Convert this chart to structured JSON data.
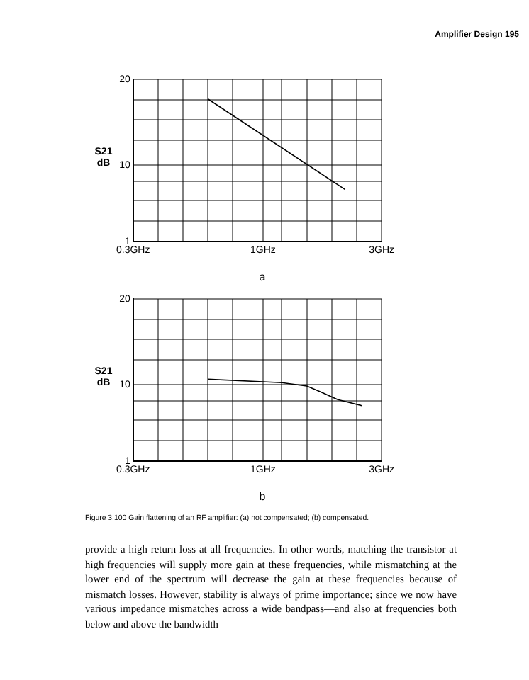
{
  "chart_data": [
    {
      "type": "line",
      "ylabel": "S21 dB",
      "log": "x",
      "grid": true,
      "legend": false,
      "marker": "none",
      "line_style": "solid",
      "xlim": [
        0.3,
        3
      ],
      "xticks": [
        {
          "value": 0.3,
          "label": "0.3GHz"
        },
        {
          "value": 0.378,
          "label": null
        },
        {
          "value": 0.475,
          "label": null
        },
        {
          "value": 0.599,
          "label": null
        },
        {
          "value": 0.754,
          "label": null
        },
        {
          "value": 1,
          "label": "1GHz"
        },
        {
          "value": 1.19,
          "label": null
        },
        {
          "value": 1.5,
          "label": null
        },
        {
          "value": 1.89,
          "label": null
        },
        {
          "value": 2.38,
          "label": null
        },
        {
          "value": 3,
          "label": "3GHz"
        }
      ],
      "ylim": [
        1,
        20
      ],
      "yticks": [
        1,
        {
          "value": 3.4,
          "label": null
        },
        {
          "value": 5.8,
          "label": null
        },
        {
          "value": 8.1,
          "label": null
        },
        10,
        {
          "value": 12.9,
          "label": null
        },
        {
          "value": 15.3,
          "label": null
        },
        {
          "value": 17.6,
          "label": null
        },
        20
      ],
      "annotations": [
        "Amplifier Design    195",
        "a"
      ],
      "series": [
        {
          "color": "#000000",
          "x": [
            0.6,
            2.14
          ],
          "values": [
            17.7,
            7.1
          ]
        }
      ]
    },
    {
      "type": "line",
      "ylabel": "S21 dB",
      "log": "x",
      "grid": true,
      "legend": false,
      "marker": "none",
      "line_style": "solid",
      "xlim": [
        0.3,
        3
      ],
      "xticks": [
        {
          "value": 0.3,
          "label": "0.3GHz"
        },
        {
          "value": 0.378,
          "label": null
        },
        {
          "value": 0.475,
          "label": null
        },
        {
          "value": 0.599,
          "label": null
        },
        {
          "value": 0.754,
          "label": null
        },
        {
          "value": 1,
          "label": "1GHz"
        },
        {
          "value": 1.19,
          "label": null
        },
        {
          "value": 1.5,
          "label": null
        },
        {
          "value": 1.89,
          "label": null
        },
        {
          "value": 2.38,
          "label": null
        },
        {
          "value": 3,
          "label": "3GHz"
        }
      ],
      "ylim": [
        1,
        20
      ],
      "yticks": [
        1,
        {
          "value": 3.4,
          "label": null
        },
        {
          "value": 5.8,
          "label": null
        },
        {
          "value": 8.1,
          "label": null
        },
        10,
        {
          "value": 12.9,
          "label": null
        },
        {
          "value": 15.3,
          "label": null
        },
        {
          "value": 17.6,
          "label": null
        },
        20
      ],
      "annotations": [
        "b",
        "Figure 3.100  Gain flattening of an RF amplifier: (a) not compensated; (b) compensated.",
        "provide a high return loss at all frequencies. In other words, matching the transistor at high frequencies will supply more gain at these frequencies, while mismatching at the lower end of the spectrum will decrease the gain at these frequencies because of mismatch losses. However, stability is always of prime importance; since we now have various impedance mismatches across a wide bandpass—and also at frequencies both below and above the bandwidth"
      ],
      "series": [
        {
          "color": "#000000",
          "x": [
            0.6,
            1.0,
            1.19,
            1.5,
            1.71,
            2.0,
            2.5
          ],
          "values": [
            10.6,
            10.3,
            10.2,
            9.8,
            9.1,
            8.2,
            7.5
          ]
        }
      ]
    }
  ]
}
